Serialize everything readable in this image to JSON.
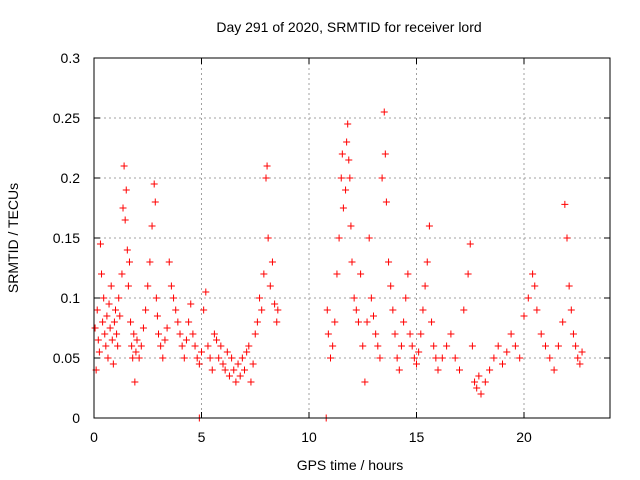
{
  "chart_data": {
    "type": "scatter",
    "title": "Day 291 of 2020, SRMTID for receiver lord",
    "xlabel": "GPS time / hours",
    "ylabel": "SRMTID / TECUs",
    "xlim": [
      0,
      24
    ],
    "ylim": [
      0,
      0.3
    ],
    "xticks": [
      0,
      5,
      10,
      15,
      20
    ],
    "xtick_labels": [
      "0",
      "5",
      "10",
      "15",
      "20"
    ],
    "yticks": [
      0,
      0.05,
      0.1,
      0.15,
      0.2,
      0.25,
      0.3
    ],
    "ytick_labels": [
      "0",
      "0.05",
      "0.1",
      "0.15",
      "0.2",
      "0.25",
      "0.3"
    ],
    "grid": true,
    "marker": "+",
    "color": "#ff0000",
    "series": [
      {
        "name": "SRMTID",
        "points": [
          [
            0.05,
            0.075
          ],
          [
            0.1,
            0.04
          ],
          [
            0.15,
            0.09
          ],
          [
            0.2,
            0.065
          ],
          [
            0.25,
            0.055
          ],
          [
            0.3,
            0.145
          ],
          [
            0.35,
            0.12
          ],
          [
            0.4,
            0.08
          ],
          [
            0.45,
            0.1
          ],
          [
            0.5,
            0.07
          ],
          [
            0.55,
            0.06
          ],
          [
            0.6,
            0.085
          ],
          [
            0.65,
            0.05
          ],
          [
            0.7,
            0.095
          ],
          [
            0.75,
            0.075
          ],
          [
            0.8,
            0.11
          ],
          [
            0.85,
            0.065
          ],
          [
            0.9,
            0.045
          ],
          [
            0.95,
            0.08
          ],
          [
            1.0,
            0.09
          ],
          [
            1.05,
            0.07
          ],
          [
            1.1,
            0.06
          ],
          [
            1.15,
            0.1
          ],
          [
            1.2,
            0.085
          ],
          [
            1.3,
            0.12
          ],
          [
            1.35,
            0.175
          ],
          [
            1.4,
            0.21
          ],
          [
            1.45,
            0.165
          ],
          [
            1.5,
            0.19
          ],
          [
            1.55,
            0.14
          ],
          [
            1.6,
            0.11
          ],
          [
            1.65,
            0.13
          ],
          [
            1.7,
            0.08
          ],
          [
            1.75,
            0.06
          ],
          [
            1.8,
            0.05
          ],
          [
            1.85,
            0.07
          ],
          [
            1.9,
            0.03
          ],
          [
            1.95,
            0.055
          ],
          [
            2.0,
            0.065
          ],
          [
            2.1,
            0.05
          ],
          [
            2.2,
            0.06
          ],
          [
            2.3,
            0.075
          ],
          [
            2.4,
            0.09
          ],
          [
            2.5,
            0.11
          ],
          [
            2.6,
            0.13
          ],
          [
            2.7,
            0.16
          ],
          [
            2.8,
            0.195
          ],
          [
            2.85,
            0.18
          ],
          [
            2.9,
            0.1
          ],
          [
            2.95,
            0.085
          ],
          [
            3.0,
            0.07
          ],
          [
            3.1,
            0.06
          ],
          [
            3.2,
            0.05
          ],
          [
            3.3,
            0.065
          ],
          [
            3.4,
            0.075
          ],
          [
            3.5,
            0.13
          ],
          [
            3.6,
            0.11
          ],
          [
            3.7,
            0.1
          ],
          [
            3.8,
            0.09
          ],
          [
            3.9,
            0.08
          ],
          [
            4.0,
            0.07
          ],
          [
            4.1,
            0.06
          ],
          [
            4.2,
            0.05
          ],
          [
            4.3,
            0.065
          ],
          [
            4.4,
            0.08
          ],
          [
            4.5,
            0.095
          ],
          [
            4.6,
            0.07
          ],
          [
            4.7,
            0.06
          ],
          [
            4.8,
            0.05
          ],
          [
            4.9,
            0.045
          ],
          [
            5.0,
            0.055
          ],
          [
            5.1,
            0.09
          ],
          [
            5.2,
            0.105
          ],
          [
            5.3,
            0.06
          ],
          [
            5.4,
            0.05
          ],
          [
            5.5,
            0.04
          ],
          [
            5.6,
            0.07
          ],
          [
            5.7,
            0.065
          ],
          [
            5.8,
            0.05
          ],
          [
            5.9,
            0.06
          ],
          [
            6.0,
            0.045
          ],
          [
            6.1,
            0.04
          ],
          [
            6.2,
            0.055
          ],
          [
            6.3,
            0.035
          ],
          [
            6.4,
            0.05
          ],
          [
            6.5,
            0.04
          ],
          [
            6.6,
            0.03
          ],
          [
            6.7,
            0.045
          ],
          [
            6.8,
            0.035
          ],
          [
            6.9,
            0.05
          ],
          [
            7.0,
            0.04
          ],
          [
            7.1,
            0.055
          ],
          [
            7.2,
            0.06
          ],
          [
            7.3,
            0.03
          ],
          [
            7.4,
            0.045
          ],
          [
            7.5,
            0.07
          ],
          [
            7.6,
            0.08
          ],
          [
            7.7,
            0.1
          ],
          [
            7.8,
            0.09
          ],
          [
            7.9,
            0.12
          ],
          [
            8.0,
            0.2
          ],
          [
            8.05,
            0.21
          ],
          [
            8.1,
            0.15
          ],
          [
            8.2,
            0.11
          ],
          [
            8.3,
            0.13
          ],
          [
            8.4,
            0.095
          ],
          [
            8.5,
            0.08
          ],
          [
            8.55,
            0.09
          ],
          [
            10.85,
            0.09
          ],
          [
            10.9,
            0.07
          ],
          [
            11.0,
            0.05
          ],
          [
            11.1,
            0.06
          ],
          [
            11.2,
            0.08
          ],
          [
            11.3,
            0.12
          ],
          [
            11.4,
            0.15
          ],
          [
            11.5,
            0.2
          ],
          [
            11.55,
            0.22
          ],
          [
            11.6,
            0.175
          ],
          [
            11.7,
            0.19
          ],
          [
            11.75,
            0.23
          ],
          [
            11.8,
            0.245
          ],
          [
            11.85,
            0.215
          ],
          [
            11.9,
            0.2
          ],
          [
            11.95,
            0.16
          ],
          [
            12.0,
            0.13
          ],
          [
            12.1,
            0.1
          ],
          [
            12.2,
            0.09
          ],
          [
            12.3,
            0.08
          ],
          [
            12.4,
            0.12
          ],
          [
            12.5,
            0.06
          ],
          [
            12.6,
            0.03
          ],
          [
            12.7,
            0.08
          ],
          [
            12.8,
            0.15
          ],
          [
            12.9,
            0.1
          ],
          [
            13.0,
            0.085
          ],
          [
            13.1,
            0.07
          ],
          [
            13.2,
            0.06
          ],
          [
            13.3,
            0.05
          ],
          [
            13.4,
            0.2
          ],
          [
            13.5,
            0.255
          ],
          [
            13.55,
            0.22
          ],
          [
            13.6,
            0.18
          ],
          [
            13.7,
            0.13
          ],
          [
            13.8,
            0.11
          ],
          [
            13.9,
            0.09
          ],
          [
            14.0,
            0.07
          ],
          [
            14.1,
            0.05
          ],
          [
            14.2,
            0.04
          ],
          [
            14.3,
            0.06
          ],
          [
            14.4,
            0.08
          ],
          [
            14.5,
            0.1
          ],
          [
            14.6,
            0.12
          ],
          [
            14.7,
            0.07
          ],
          [
            14.8,
            0.06
          ],
          [
            14.9,
            0.05
          ],
          [
            15.0,
            0.045
          ],
          [
            15.1,
            0.055
          ],
          [
            15.2,
            0.07
          ],
          [
            15.3,
            0.09
          ],
          [
            15.4,
            0.11
          ],
          [
            15.5,
            0.13
          ],
          [
            15.6,
            0.16
          ],
          [
            15.7,
            0.08
          ],
          [
            15.8,
            0.06
          ],
          [
            15.9,
            0.05
          ],
          [
            16.0,
            0.04
          ],
          [
            16.2,
            0.05
          ],
          [
            16.4,
            0.06
          ],
          [
            16.6,
            0.07
          ],
          [
            16.8,
            0.05
          ],
          [
            17.0,
            0.04
          ],
          [
            17.2,
            0.09
          ],
          [
            17.4,
            0.12
          ],
          [
            17.5,
            0.145
          ],
          [
            17.6,
            0.06
          ],
          [
            17.7,
            0.03
          ],
          [
            17.8,
            0.025
          ],
          [
            17.9,
            0.035
          ],
          [
            18.0,
            0.02
          ],
          [
            18.2,
            0.03
          ],
          [
            18.4,
            0.04
          ],
          [
            18.6,
            0.05
          ],
          [
            18.8,
            0.06
          ],
          [
            19.0,
            0.045
          ],
          [
            19.2,
            0.055
          ],
          [
            19.4,
            0.07
          ],
          [
            19.6,
            0.06
          ],
          [
            19.8,
            0.05
          ],
          [
            20.0,
            0.085
          ],
          [
            20.2,
            0.1
          ],
          [
            20.4,
            0.12
          ],
          [
            20.5,
            0.11
          ],
          [
            20.6,
            0.09
          ],
          [
            20.8,
            0.07
          ],
          [
            21.0,
            0.06
          ],
          [
            21.2,
            0.05
          ],
          [
            21.4,
            0.04
          ],
          [
            21.6,
            0.06
          ],
          [
            21.8,
            0.08
          ],
          [
            21.9,
            0.178
          ],
          [
            22.0,
            0.15
          ],
          [
            22.1,
            0.11
          ],
          [
            22.2,
            0.09
          ],
          [
            22.3,
            0.07
          ],
          [
            22.4,
            0.06
          ],
          [
            22.5,
            0.05
          ],
          [
            22.6,
            0.045
          ],
          [
            22.7,
            0.055
          ],
          [
            4.9,
            0.0
          ],
          [
            10.8,
            0.0
          ]
        ]
      }
    ]
  }
}
